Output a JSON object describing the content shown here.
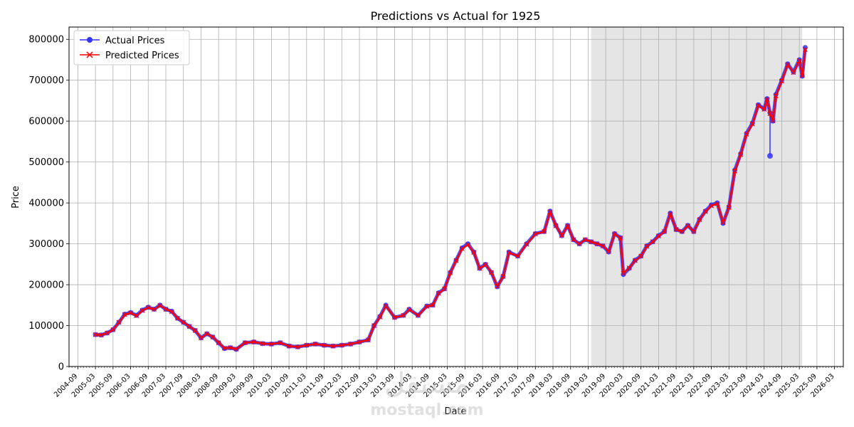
{
  "chart_data": {
    "type": "line",
    "title": "Predictions vs Actual for 1925",
    "xlabel": "Date",
    "ylabel": "Price",
    "xlim": [
      "2004-06",
      "2026-06"
    ],
    "ylim": [
      0,
      830000
    ],
    "yticks": [
      0,
      100000,
      200000,
      300000,
      400000,
      500000,
      600000,
      700000,
      800000
    ],
    "ytick_labels": [
      "0",
      "100000",
      "200000",
      "300000",
      "400000",
      "500000",
      "600000",
      "700000",
      "800000"
    ],
    "xtick_labels": [
      "2004-09",
      "2005-03",
      "2005-09",
      "2006-03",
      "2006-09",
      "2007-03",
      "2007-09",
      "2008-03",
      "2008-09",
      "2009-03",
      "2009-09",
      "2010-03",
      "2010-09",
      "2011-03",
      "2011-09",
      "2012-03",
      "2012-09",
      "2013-03",
      "2013-09",
      "2014-03",
      "2014-09",
      "2015-03",
      "2015-09",
      "2016-03",
      "2016-09",
      "2017-03",
      "2017-09",
      "2018-03",
      "2018-09",
      "2019-03",
      "2019-09",
      "2020-03",
      "2020-09",
      "2021-03",
      "2021-09",
      "2022-03",
      "2022-09",
      "2023-03",
      "2023-09",
      "2024-03",
      "2024-09",
      "2025-03",
      "2025-09",
      "2026-03"
    ],
    "grid": true,
    "legend_position": "top-left",
    "shaded_region": {
      "from": "2019-04",
      "to": "2025-04",
      "color": "#e5e5e5"
    },
    "series": [
      {
        "name": "Actual Prices",
        "color": "#3333ff",
        "marker": "circle",
        "x": [
          "2005-03",
          "2005-05",
          "2005-07",
          "2005-09",
          "2005-11",
          "2006-01",
          "2006-03",
          "2006-05",
          "2006-07",
          "2006-09",
          "2006-11",
          "2007-01",
          "2007-03",
          "2007-05",
          "2007-07",
          "2007-09",
          "2007-11",
          "2008-01",
          "2008-03",
          "2008-05",
          "2008-07",
          "2008-09",
          "2008-11",
          "2009-01",
          "2009-03",
          "2009-06",
          "2009-09",
          "2009-12",
          "2010-03",
          "2010-06",
          "2010-09",
          "2010-12",
          "2011-03",
          "2011-06",
          "2011-09",
          "2011-12",
          "2012-03",
          "2012-06",
          "2012-09",
          "2012-12",
          "2013-02",
          "2013-04",
          "2013-06",
          "2013-09",
          "2013-12",
          "2014-02",
          "2014-05",
          "2014-08",
          "2014-10",
          "2014-12",
          "2015-02",
          "2015-04",
          "2015-06",
          "2015-08",
          "2015-10",
          "2015-12",
          "2016-02",
          "2016-04",
          "2016-06",
          "2016-08",
          "2016-10",
          "2016-12",
          "2017-03",
          "2017-06",
          "2017-09",
          "2017-12",
          "2018-02",
          "2018-04",
          "2018-06",
          "2018-08",
          "2018-10",
          "2018-12",
          "2019-02",
          "2019-04",
          "2019-06",
          "2019-08",
          "2019-10",
          "2019-12",
          "2020-02",
          "2020-03",
          "2020-05",
          "2020-07",
          "2020-09",
          "2020-11",
          "2021-01",
          "2021-03",
          "2021-05",
          "2021-07",
          "2021-09",
          "2021-11",
          "2022-01",
          "2022-03",
          "2022-05",
          "2022-07",
          "2022-09",
          "2022-11",
          "2023-01",
          "2023-03",
          "2023-05",
          "2023-07",
          "2023-09",
          "2023-11",
          "2024-01",
          "2024-03",
          "2024-04",
          "2024-05",
          "2024-06",
          "2024-07",
          "2024-09",
          "2024-11",
          "2025-01",
          "2025-03",
          "2025-04",
          "2025-05"
        ],
        "y": [
          78000,
          77000,
          82000,
          90000,
          108000,
          128000,
          132000,
          125000,
          138000,
          145000,
          140000,
          150000,
          140000,
          135000,
          118000,
          108000,
          98000,
          88000,
          70000,
          80000,
          72000,
          58000,
          44000,
          46000,
          42000,
          58000,
          60000,
          56000,
          55000,
          58000,
          50000,
          48000,
          52000,
          55000,
          52000,
          50000,
          52000,
          55000,
          60000,
          65000,
          100000,
          122000,
          150000,
          120000,
          125000,
          140000,
          125000,
          148000,
          150000,
          180000,
          190000,
          230000,
          260000,
          290000,
          300000,
          280000,
          240000,
          250000,
          230000,
          195000,
          220000,
          280000,
          270000,
          300000,
          325000,
          330000,
          380000,
          345000,
          320000,
          345000,
          310000,
          300000,
          310000,
          305000,
          300000,
          295000,
          280000,
          325000,
          315000,
          225000,
          240000,
          260000,
          270000,
          295000,
          305000,
          320000,
          330000,
          375000,
          335000,
          330000,
          345000,
          330000,
          360000,
          380000,
          395000,
          400000,
          350000,
          390000,
          480000,
          520000,
          570000,
          595000,
          640000,
          630000,
          655000,
          620000,
          600000,
          665000,
          700000,
          740000,
          720000,
          750000,
          710000,
          780000
        ],
        "outliers": [
          {
            "x": "2024-05",
            "y": 515000
          }
        ]
      },
      {
        "name": "Predicted Prices",
        "color": "#ff0000",
        "marker": "x",
        "x": [
          "2005-03",
          "2005-05",
          "2005-07",
          "2005-09",
          "2005-11",
          "2006-01",
          "2006-03",
          "2006-05",
          "2006-07",
          "2006-09",
          "2006-11",
          "2007-01",
          "2007-03",
          "2007-05",
          "2007-07",
          "2007-09",
          "2007-11",
          "2008-01",
          "2008-03",
          "2008-05",
          "2008-07",
          "2008-09",
          "2008-11",
          "2009-01",
          "2009-03",
          "2009-06",
          "2009-09",
          "2009-12",
          "2010-03",
          "2010-06",
          "2010-09",
          "2010-12",
          "2011-03",
          "2011-06",
          "2011-09",
          "2011-12",
          "2012-03",
          "2012-06",
          "2012-09",
          "2012-12",
          "2013-02",
          "2013-04",
          "2013-06",
          "2013-09",
          "2013-12",
          "2014-02",
          "2014-05",
          "2014-08",
          "2014-10",
          "2014-12",
          "2015-02",
          "2015-04",
          "2015-06",
          "2015-08",
          "2015-10",
          "2015-12",
          "2016-02",
          "2016-04",
          "2016-06",
          "2016-08",
          "2016-10",
          "2016-12",
          "2017-03",
          "2017-06",
          "2017-09",
          "2017-12",
          "2018-02",
          "2018-04",
          "2018-06",
          "2018-08",
          "2018-10",
          "2018-12",
          "2019-02",
          "2019-04",
          "2019-06",
          "2019-08",
          "2019-10",
          "2019-12",
          "2020-02",
          "2020-03",
          "2020-05",
          "2020-07",
          "2020-09",
          "2020-11",
          "2021-01",
          "2021-03",
          "2021-05",
          "2021-07",
          "2021-09",
          "2021-11",
          "2022-01",
          "2022-03",
          "2022-05",
          "2022-07",
          "2022-09",
          "2022-11",
          "2023-01",
          "2023-03",
          "2023-05",
          "2023-07",
          "2023-09",
          "2023-11",
          "2024-01",
          "2024-03",
          "2024-04",
          "2024-05",
          "2024-06",
          "2024-07",
          "2024-09",
          "2024-11",
          "2025-01",
          "2025-03",
          "2025-04",
          "2025-05"
        ],
        "y": [
          78000,
          77000,
          82000,
          90000,
          108000,
          127000,
          131000,
          124000,
          137000,
          144000,
          140000,
          149000,
          140000,
          134000,
          118000,
          108000,
          98000,
          88000,
          70000,
          80000,
          72000,
          58000,
          45000,
          46000,
          43000,
          58000,
          60000,
          56000,
          55000,
          58000,
          50000,
          48000,
          52000,
          55000,
          52000,
          50000,
          52000,
          55000,
          60000,
          65000,
          100000,
          121000,
          148000,
          120000,
          125000,
          139000,
          125000,
          147000,
          150000,
          179000,
          190000,
          229000,
          259000,
          288000,
          298000,
          279000,
          240000,
          249000,
          230000,
          196000,
          220000,
          278000,
          270000,
          299000,
          324000,
          330000,
          378000,
          344000,
          320000,
          344000,
          310000,
          300000,
          310000,
          305000,
          300000,
          295000,
          281000,
          324000,
          314000,
          228000,
          241000,
          259000,
          270000,
          294000,
          305000,
          319000,
          330000,
          373000,
          335000,
          330000,
          344000,
          330000,
          359000,
          379000,
          393000,
          398000,
          352000,
          389000,
          478000,
          518000,
          568000,
          593000,
          638000,
          629000,
          653000,
          618000,
          601000,
          662000,
          698000,
          738000,
          719000,
          748000,
          711000,
          775000
        ]
      }
    ]
  },
  "watermark": {
    "line1": "مستقل",
    "line2": "mostaql.com"
  }
}
